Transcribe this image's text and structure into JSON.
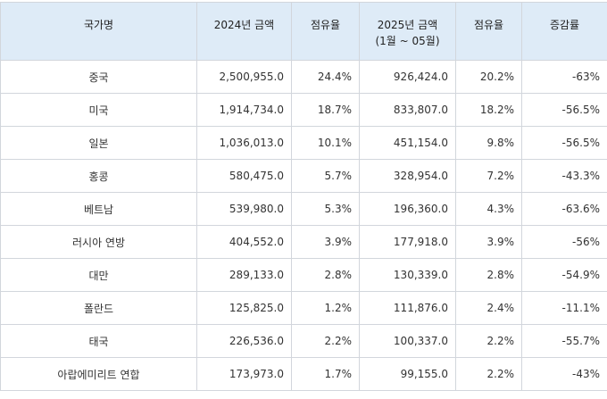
{
  "table": {
    "headers": [
      "국가명",
      "2024년 금액",
      "점유율",
      "2025년 금액",
      "(1월 ~ 05월)",
      "점유율",
      "증감률"
    ],
    "rows": [
      [
        "중국",
        "2,500,955.0",
        "24.4%",
        "926,424.0",
        "20.2%",
        "-63%"
      ],
      [
        "미국",
        "1,914,734.0",
        "18.7%",
        "833,807.0",
        "18.2%",
        "-56.5%"
      ],
      [
        "일본",
        "1,036,013.0",
        "10.1%",
        "451,154.0",
        "9.8%",
        "-56.5%"
      ],
      [
        "홍콩",
        "580,475.0",
        "5.7%",
        "328,954.0",
        "7.2%",
        "-43.3%"
      ],
      [
        "베트남",
        "539,980.0",
        "5.3%",
        "196,360.0",
        "4.3%",
        "-63.6%"
      ],
      [
        "러시아 연방",
        "404,552.0",
        "3.9%",
        "177,918.0",
        "3.9%",
        "-56%"
      ],
      [
        "대만",
        "289,133.0",
        "2.8%",
        "130,339.0",
        "2.8%",
        "-54.9%"
      ],
      [
        "폴란드",
        "125,825.0",
        "1.2%",
        "111,876.0",
        "2.4%",
        "-11.1%"
      ],
      [
        "태국",
        "226,536.0",
        "2.2%",
        "100,337.0",
        "2.2%",
        "-55.7%"
      ],
      [
        "아랍에미리트 연합",
        "173,973.0",
        "1.7%",
        "99,155.0",
        "2.2%",
        "-43%"
      ]
    ]
  }
}
